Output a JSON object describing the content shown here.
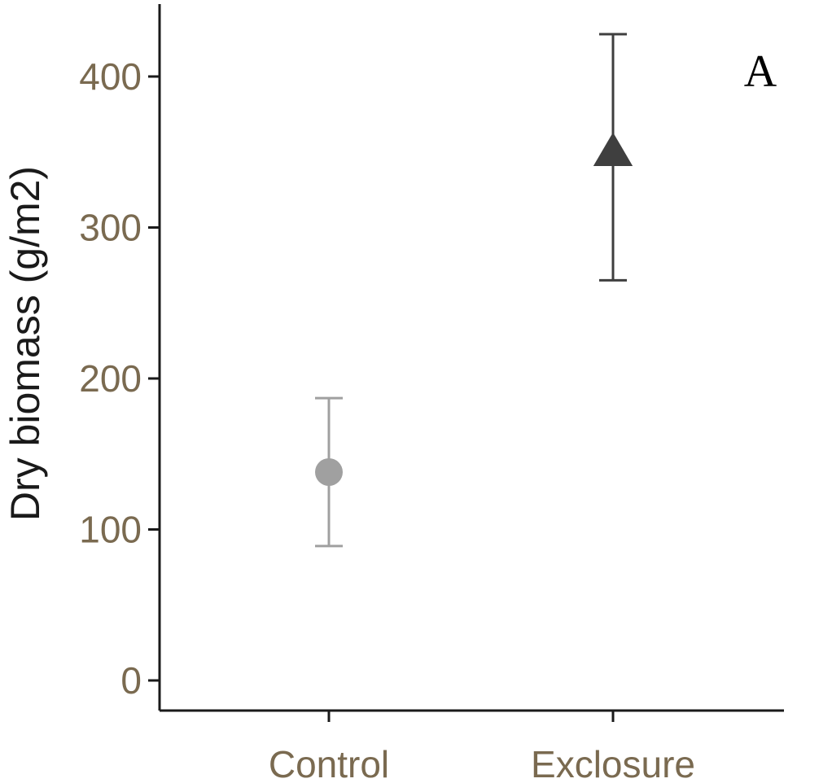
{
  "chart_data": {
    "type": "scatter",
    "panel_label": "A",
    "ylabel": "Dry biomass (g/m2)",
    "xlabel": "",
    "categories": [
      "Control",
      "Exclosure"
    ],
    "ylim": [
      -20,
      450
    ],
    "yticks": [
      0,
      100,
      200,
      300,
      400
    ],
    "grid": false,
    "legend": "none",
    "points": [
      {
        "category": "Control",
        "value": 138,
        "error_low": 89,
        "error_high": 187,
        "marker": "circle",
        "color": "#a0a0a0"
      },
      {
        "category": "Exclosure",
        "value": 350,
        "error_low": 265,
        "error_high": 428,
        "marker": "triangle",
        "color": "#3f3f3f"
      }
    ]
  }
}
